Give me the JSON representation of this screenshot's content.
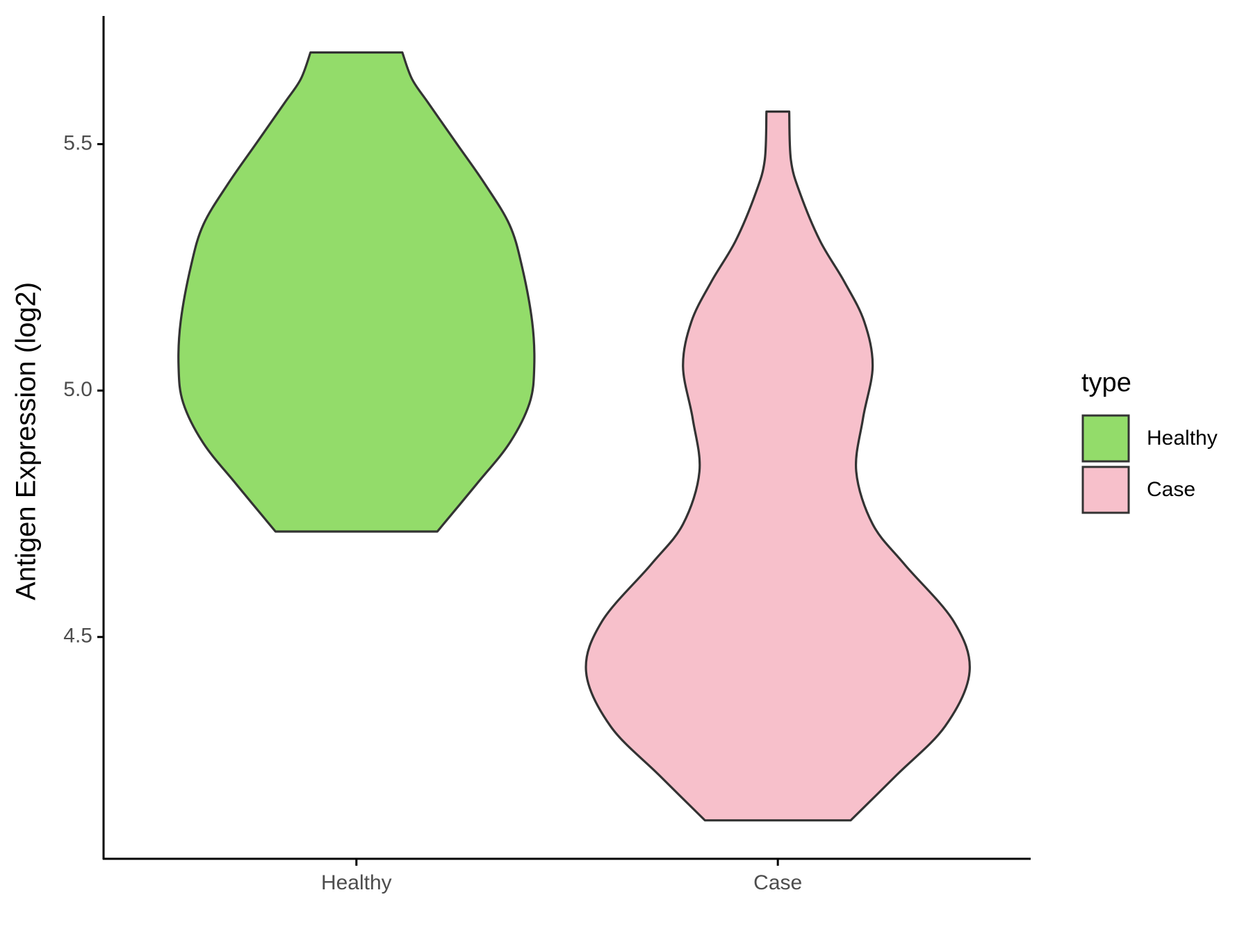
{
  "chart_data": {
    "type": "violin",
    "y_label": "Antigen Expression (log2)",
    "categories": [
      "Healthy",
      "Case"
    ],
    "legend_title": "type",
    "series": [
      {
        "name": "Healthy",
        "color": "#93dc6a",
        "y": [
          5.686,
          5.632,
          5.583,
          5.501,
          5.419,
          5.337,
          5.255,
          5.14,
          5.049,
          4.975,
          4.893,
          4.811,
          4.714
        ],
        "width": [
          0.109,
          0.132,
          0.171,
          0.238,
          0.305,
          0.363,
          0.392,
          0.417,
          0.422,
          0.411,
          0.363,
          0.286,
          0.192
        ]
      },
      {
        "name": "Case",
        "color": "#f7c0cb",
        "y": [
          5.566,
          5.468,
          5.402,
          5.304,
          5.222,
          5.14,
          5.049,
          4.943,
          4.836,
          4.729,
          4.647,
          4.532,
          4.43,
          4.319,
          4.22,
          4.128
        ],
        "width": [
          0.027,
          0.031,
          0.052,
          0.1,
          0.157,
          0.205,
          0.225,
          0.202,
          0.186,
          0.225,
          0.301,
          0.417,
          0.455,
          0.397,
          0.282,
          0.173
        ]
      }
    ],
    "ylim": [
      4.05,
      5.76
    ],
    "yticks": [
      4.5,
      {
        "value": 5,
        "label": "5.0"
      },
      4.5,
      {
        "value": 5.5,
        "label": "5.5"
      }
    ]
  }
}
